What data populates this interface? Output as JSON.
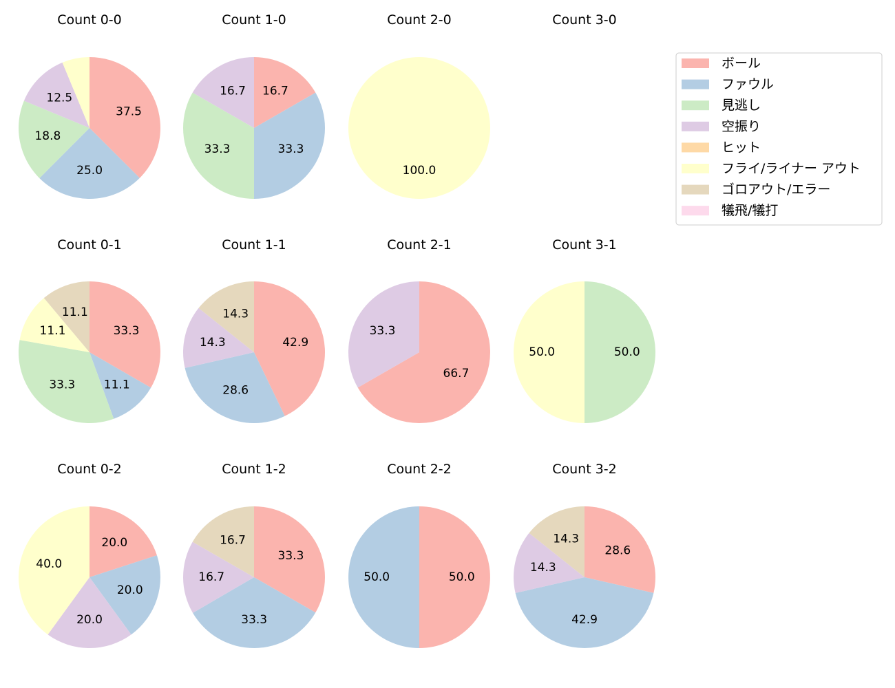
{
  "chart_data": {
    "type": "pie",
    "categories": [
      "ボール",
      "ファウル",
      "見逃し",
      "空振り",
      "ヒット",
      "フライ/ライナー アウト",
      "ゴロアウト/エラー",
      "犠飛/犠打"
    ],
    "colors": [
      "#fbb4ae",
      "#b3cde3",
      "#ccebc5",
      "#decbe4",
      "#fed9a6",
      "#ffffcc",
      "#e5d8bd",
      "#fddaec"
    ],
    "start_angle_deg": 90,
    "direction": "clockwise",
    "legend_position": "top-right",
    "charts": [
      {
        "title": "Count 0-0",
        "values": [
          37.5,
          25.0,
          18.8,
          12.5,
          0,
          6.25,
          0,
          0
        ]
      },
      {
        "title": "Count 1-0",
        "values": [
          16.7,
          33.3,
          33.3,
          16.7,
          0,
          0,
          0,
          0
        ]
      },
      {
        "title": "Count 2-0",
        "values": [
          0,
          0,
          0,
          0,
          0,
          100.0,
          0,
          0
        ]
      },
      {
        "title": "Count 3-0",
        "values": [
          0,
          0,
          0,
          0,
          0,
          0,
          0,
          0
        ]
      },
      {
        "title": "Count 0-1",
        "values": [
          33.3,
          11.1,
          33.3,
          0,
          0,
          11.1,
          11.1,
          0
        ]
      },
      {
        "title": "Count 1-1",
        "values": [
          42.9,
          28.6,
          0,
          14.3,
          0,
          0,
          14.3,
          0
        ]
      },
      {
        "title": "Count 2-1",
        "values": [
          66.7,
          0,
          0,
          33.3,
          0,
          0,
          0,
          0
        ]
      },
      {
        "title": "Count 3-1",
        "values": [
          0,
          0,
          50.0,
          0,
          0,
          50.0,
          0,
          0
        ]
      },
      {
        "title": "Count 0-2",
        "values": [
          20.0,
          20.0,
          0,
          20.0,
          0,
          40.0,
          0,
          0
        ]
      },
      {
        "title": "Count 1-2",
        "values": [
          33.3,
          33.3,
          0,
          16.7,
          0,
          0,
          16.7,
          0
        ]
      },
      {
        "title": "Count 2-2",
        "values": [
          50.0,
          50.0,
          0,
          0,
          0,
          0,
          0,
          0
        ]
      },
      {
        "title": "Count 3-2",
        "values": [
          28.6,
          42.9,
          0,
          14.3,
          0,
          0,
          14.3,
          0
        ]
      }
    ]
  }
}
